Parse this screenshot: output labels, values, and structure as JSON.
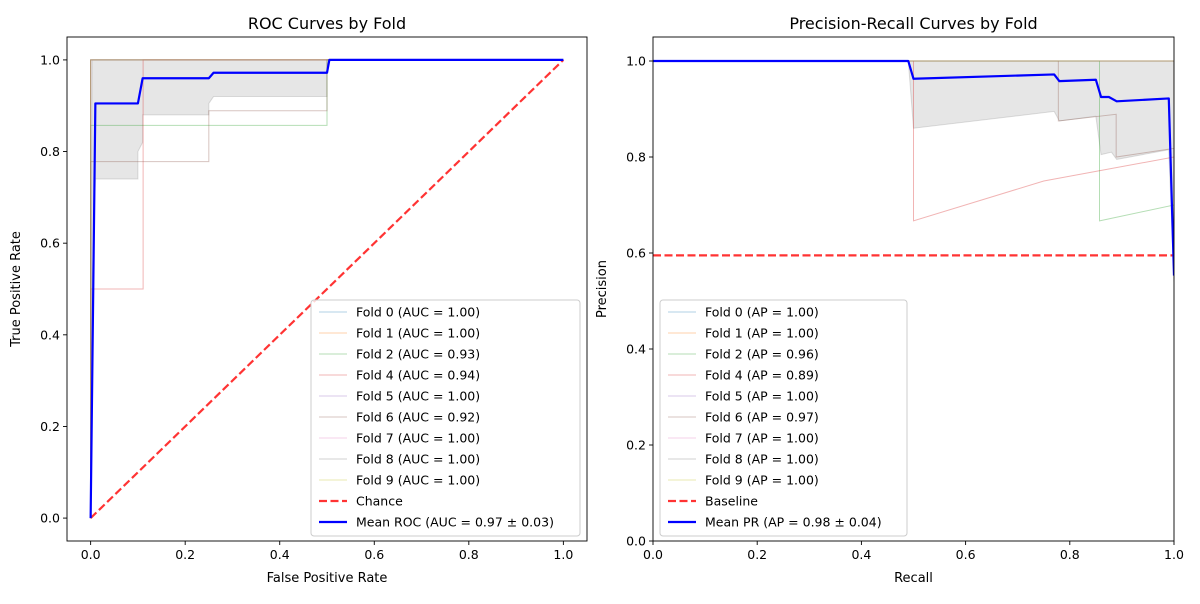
{
  "chart_data": [
    {
      "type": "line",
      "title": "ROC Curves by Fold",
      "xlabel": "False Positive Rate",
      "ylabel": "True Positive Rate",
      "xlim": [
        -0.05,
        1.05
      ],
      "ylim": [
        -0.05,
        1.05
      ],
      "x_ticks": [
        0.0,
        0.2,
        0.4,
        0.6,
        0.8,
        1.0
      ],
      "y_ticks": [
        0.0,
        0.2,
        0.4,
        0.6,
        0.8,
        1.0
      ],
      "x_tick_labels": [
        "0.0",
        "0.2",
        "0.4",
        "0.6",
        "0.8",
        "1.0"
      ],
      "y_tick_labels": [
        "0.0",
        "0.2",
        "0.4",
        "0.6",
        "0.8",
        "1.0"
      ],
      "grid": false,
      "legend_position": "lower-right",
      "std_band": {
        "x": [
          0,
          0.003,
          0.01,
          0.1,
          0.1,
          0.11,
          0.11,
          0.25,
          0.25,
          0.26,
          0.5,
          0.5,
          0.505,
          1.0
        ],
        "lower": [
          0,
          0.5,
          0.74,
          0.74,
          0.8,
          0.82,
          0.88,
          0.88,
          0.905,
          0.92,
          0.92,
          0.98,
          1.0,
          1.0
        ],
        "upper": [
          0,
          1.0,
          1.0,
          1.0,
          1.0,
          1.0,
          1.0,
          1.0,
          1.0,
          1.0,
          1.0,
          1.0,
          1.0,
          1.0
        ],
        "color": "#808080"
      },
      "series": [
        {
          "name": "Fold 0 (AUC = 1.00)",
          "color": "#1f77b4",
          "x": [
            0,
            0,
            1
          ],
          "y": [
            0,
            1,
            1
          ]
        },
        {
          "name": "Fold 1 (AUC = 1.00)",
          "color": "#ff7f0e",
          "x": [
            0,
            0,
            1
          ],
          "y": [
            0,
            1,
            1
          ]
        },
        {
          "name": "Fold 2 (AUC = 0.93)",
          "color": "#2ca02c",
          "x": [
            0,
            0,
            0.5,
            0.5,
            1
          ],
          "y": [
            0,
            0.857,
            0.857,
            1,
            1
          ]
        },
        {
          "name": "Fold 4 (AUC = 0.94)",
          "color": "#d62728",
          "x": [
            0,
            0,
            0.111,
            0.111,
            1
          ],
          "y": [
            0,
            0.5,
            0.5,
            1,
            1
          ]
        },
        {
          "name": "Fold 5 (AUC = 1.00)",
          "color": "#9467bd",
          "x": [
            0,
            0,
            1
          ],
          "y": [
            0,
            1,
            1
          ]
        },
        {
          "name": "Fold 6 (AUC = 0.92)",
          "color": "#8c564b",
          "x": [
            0,
            0,
            0.25,
            0.25,
            0.5,
            0.5,
            1
          ],
          "y": [
            0,
            0.778,
            0.778,
            0.889,
            0.889,
            1,
            1
          ]
        },
        {
          "name": "Fold 7 (AUC = 1.00)",
          "color": "#e377c2",
          "x": [
            0,
            0,
            1
          ],
          "y": [
            0,
            1,
            1
          ]
        },
        {
          "name": "Fold 8 (AUC = 1.00)",
          "color": "#7f7f7f",
          "x": [
            0,
            0,
            1
          ],
          "y": [
            0,
            1,
            1
          ]
        },
        {
          "name": "Fold 9 (AUC = 1.00)",
          "color": "#bcbd22",
          "x": [
            0,
            0,
            1
          ],
          "y": [
            0,
            1,
            1
          ]
        }
      ],
      "reference": {
        "name": "Chance",
        "color": "#ff0000",
        "x": [
          0,
          1
        ],
        "y": [
          0,
          1
        ]
      },
      "mean": {
        "name": "Mean ROC (AUC = 0.97 ± 0.03)",
        "color": "#0000ff",
        "x": [
          0,
          0.01,
          0.1,
          0.11,
          0.25,
          0.26,
          0.5,
          0.505,
          1.0
        ],
        "y": [
          0,
          0.905,
          0.905,
          0.96,
          0.96,
          0.972,
          0.972,
          1.0,
          1.0
        ]
      }
    },
    {
      "type": "line",
      "title": "Precision-Recall Curves by Fold",
      "xlabel": "Recall",
      "ylabel": "Precision",
      "xlim": [
        0.0,
        1.0
      ],
      "ylim": [
        0.0,
        1.05
      ],
      "x_ticks": [
        0.0,
        0.2,
        0.4,
        0.6,
        0.8,
        1.0
      ],
      "y_ticks": [
        0.0,
        0.2,
        0.4,
        0.6,
        0.8,
        1.0
      ],
      "x_tick_labels": [
        "0.0",
        "0.2",
        "0.4",
        "0.6",
        "0.8",
        "1.0"
      ],
      "y_tick_labels": [
        "0.0",
        "0.2",
        "0.4",
        "0.6",
        "0.8",
        "1.0"
      ],
      "grid": false,
      "legend_position": "lower-left",
      "std_band": {
        "x": [
          0,
          0.49,
          0.5,
          0.77,
          0.78,
          0.85,
          0.86,
          0.88,
          0.89,
          0.99,
          1.0
        ],
        "lower": [
          1.0,
          1.0,
          0.86,
          0.895,
          0.875,
          0.885,
          0.805,
          0.81,
          0.795,
          0.815,
          0.54
        ],
        "upper": [
          1.0,
          1.0,
          1.0,
          1.0,
          1.0,
          1.0,
          1.0,
          1.0,
          1.0,
          1.0,
          1.0
        ],
        "color": "#808080"
      },
      "series": [
        {
          "name": "Fold 0 (AP = 1.00)",
          "color": "#1f77b4",
          "x": [
            0,
            1,
            1
          ],
          "y": [
            1,
            1,
            0.6
          ]
        },
        {
          "name": "Fold 1 (AP = 1.00)",
          "color": "#ff7f0e",
          "x": [
            0,
            1,
            1
          ],
          "y": [
            1,
            1,
            0.55
          ]
        },
        {
          "name": "Fold 2 (AP = 0.96)",
          "color": "#2ca02c",
          "x": [
            0,
            0.857,
            0.857,
            1,
            1
          ],
          "y": [
            1,
            1,
            0.667,
            0.7,
            0.6
          ]
        },
        {
          "name": "Fold 4 (AP = 0.89)",
          "color": "#d62728",
          "x": [
            0,
            0.5,
            0.5,
            0.75,
            1,
            1
          ],
          "y": [
            1,
            1,
            0.667,
            0.75,
            0.8,
            0.6
          ]
        },
        {
          "name": "Fold 5 (AP = 1.00)",
          "color": "#9467bd",
          "x": [
            0,
            1,
            1
          ],
          "y": [
            1,
            1,
            0.6
          ]
        },
        {
          "name": "Fold 6 (AP = 0.97)",
          "color": "#8c564b",
          "x": [
            0,
            0.778,
            0.778,
            0.889,
            0.889,
            1,
            1
          ],
          "y": [
            1,
            1,
            0.875,
            0.889,
            0.8,
            0.818,
            0.6
          ]
        },
        {
          "name": "Fold 7 (AP = 1.00)",
          "color": "#e377c2",
          "x": [
            0,
            1,
            1
          ],
          "y": [
            1,
            1,
            0.6
          ]
        },
        {
          "name": "Fold 8 (AP = 1.00)",
          "color": "#7f7f7f",
          "x": [
            0,
            1,
            1
          ],
          "y": [
            1,
            1,
            0.6
          ]
        },
        {
          "name": "Fold 9 (AP = 1.00)",
          "color": "#bcbd22",
          "x": [
            0,
            1,
            1
          ],
          "y": [
            1,
            1,
            0.6
          ]
        }
      ],
      "reference": {
        "name": "Baseline",
        "color": "#ff0000",
        "x": [
          0,
          1
        ],
        "y": [
          0.595,
          0.595
        ]
      },
      "mean": {
        "name": "Mean PR (AP = 0.98 ± 0.04)",
        "color": "#0000ff",
        "x": [
          0,
          0.49,
          0.5,
          0.77,
          0.78,
          0.85,
          0.86,
          0.875,
          0.89,
          0.99,
          1.0
        ],
        "y": [
          1.0,
          1.0,
          0.963,
          0.972,
          0.958,
          0.961,
          0.925,
          0.925,
          0.916,
          0.922,
          0.553
        ]
      }
    }
  ]
}
